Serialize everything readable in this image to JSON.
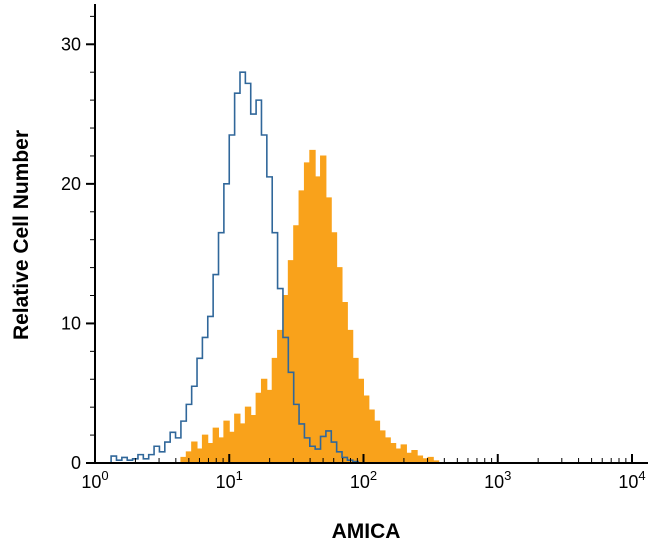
{
  "chart_data": {
    "type": "histogram-overlay-flow-cytometry",
    "title": "",
    "xlabel": "AMICA",
    "ylabel": "Relative Cell Number",
    "x_scale": "log10",
    "xlim_log": [
      0,
      4
    ],
    "ylim": [
      0,
      32.6
    ],
    "grid": false,
    "legend": "none",
    "y_ticks": [
      0,
      10,
      20,
      30
    ],
    "y_minor_tick_step": 2,
    "x_ticks": [
      {
        "label": "10",
        "exp": "0"
      },
      {
        "label": "10",
        "exp": "1"
      },
      {
        "label": "10",
        "exp": "2"
      },
      {
        "label": "10",
        "exp": "3"
      },
      {
        "label": "10",
        "exp": "4"
      }
    ],
    "colors": {
      "axis": "#000000",
      "open_histogram": "#30679A",
      "filled_histogram": "#F9A21B",
      "background": "#FFFFFF"
    },
    "series": [
      {
        "name": "filled-orange-histogram",
        "style": "filled",
        "color_key": "filled_histogram",
        "log_start": 0.64,
        "log_step": 0.04,
        "values": [
          0.4,
          0.8,
          1.5,
          1.0,
          2.0,
          1.4,
          2.5,
          1.8,
          3.0,
          2.2,
          3.5,
          2.8,
          4.0,
          3.4,
          5.0,
          6.0,
          5.2,
          7.5,
          9.5,
          12.0,
          14.5,
          17.0,
          19.5,
          21.5,
          22.4,
          20.5,
          22.0,
          19.0,
          16.5,
          14.0,
          11.5,
          9.5,
          7.5,
          6.0,
          4.8,
          3.8,
          3.0,
          2.3,
          1.8,
          1.4,
          1.0,
          1.3,
          0.7,
          0.9,
          0.5,
          0.3,
          0.4,
          0.15
        ]
      },
      {
        "name": "open-blue-histogram",
        "style": "open",
        "color_key": "open_histogram",
        "log_start": 0.12,
        "log_step": 0.04,
        "values": [
          0.5,
          0.2,
          0.4,
          0.2,
          0.3,
          0.6,
          0.3,
          0.6,
          1.2,
          0.8,
          1.5,
          2.2,
          1.8,
          3.0,
          4.2,
          5.5,
          7.5,
          9.0,
          10.5,
          13.5,
          16.5,
          20.0,
          23.5,
          26.5,
          28.0,
          27.2,
          25.0,
          26.0,
          23.5,
          20.5,
          16.5,
          12.5,
          9.0,
          6.5,
          4.2,
          2.8,
          1.8,
          1.2,
          1.0,
          1.9,
          2.3,
          1.5,
          0.8,
          0.4,
          0.2,
          0.1
        ]
      }
    ]
  }
}
